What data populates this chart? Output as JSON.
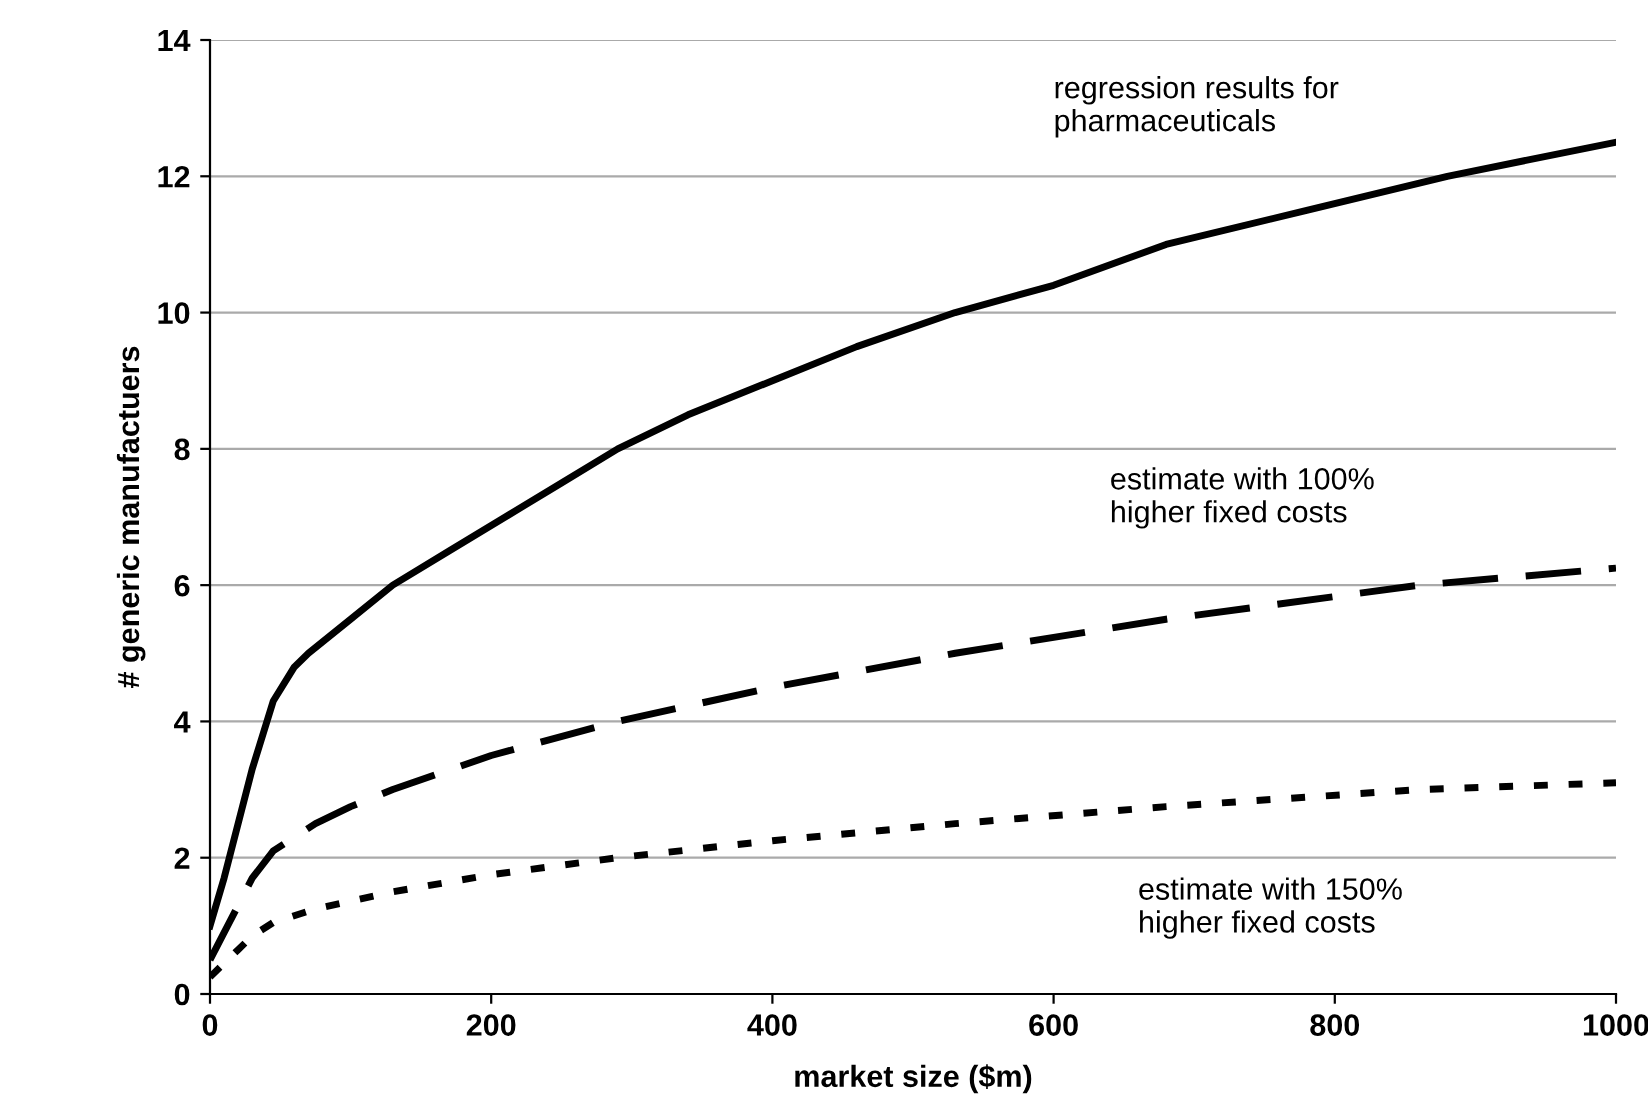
{
  "chart_data": {
    "type": "line",
    "xlabel": "market size ($m)",
    "ylabel": "# generic manufactuers",
    "xlim": [
      0,
      1000
    ],
    "ylim": [
      0,
      14
    ],
    "xticks": [
      0,
      200,
      400,
      600,
      800,
      1000
    ],
    "yticks": [
      0,
      2,
      4,
      6,
      8,
      10,
      12,
      14
    ],
    "grid": "y",
    "legend": false,
    "marker": "none",
    "series": [
      {
        "color": "#000000",
        "line_style": "solid",
        "x": [
          0,
          10,
          20,
          30,
          45,
          60,
          70,
          100,
          130,
          170,
          210,
          250,
          290,
          340,
          400,
          460,
          530,
          600,
          680,
          780,
          880,
          1000
        ],
        "values": [
          1.0,
          1.7,
          2.5,
          3.3,
          4.3,
          4.8,
          5.0,
          5.5,
          6.0,
          6.5,
          7.0,
          7.5,
          8.0,
          8.5,
          9.0,
          9.5,
          10.0,
          10.4,
          11.0,
          11.5,
          12.0,
          12.5
        ]
      },
      {
        "color": "#000000",
        "line_style": "dashed",
        "x": [
          0,
          10,
          20,
          30,
          45,
          60,
          75,
          100,
          130,
          200,
          290,
          400,
          530,
          680,
          860,
          1000
        ],
        "values": [
          0.5,
          0.9,
          1.3,
          1.7,
          2.1,
          2.3,
          2.5,
          2.75,
          3.0,
          3.5,
          4.0,
          4.5,
          5.0,
          5.5,
          6.0,
          6.25
        ]
      },
      {
        "color": "#000000",
        "line_style": "dotted",
        "x": [
          0,
          10,
          20,
          30,
          45,
          75,
          130,
          200,
          290,
          400,
          530,
          680,
          860,
          1000
        ],
        "values": [
          0.25,
          0.45,
          0.65,
          0.85,
          1.05,
          1.25,
          1.5,
          1.75,
          2.0,
          2.25,
          2.5,
          2.75,
          3.0,
          3.1
        ]
      }
    ],
    "annotations": [
      "regression results for\npharmaceuticals",
      "estimate with 100%\nhigher fixed costs",
      "estimate with 150%\nhigher fixed costs"
    ]
  }
}
